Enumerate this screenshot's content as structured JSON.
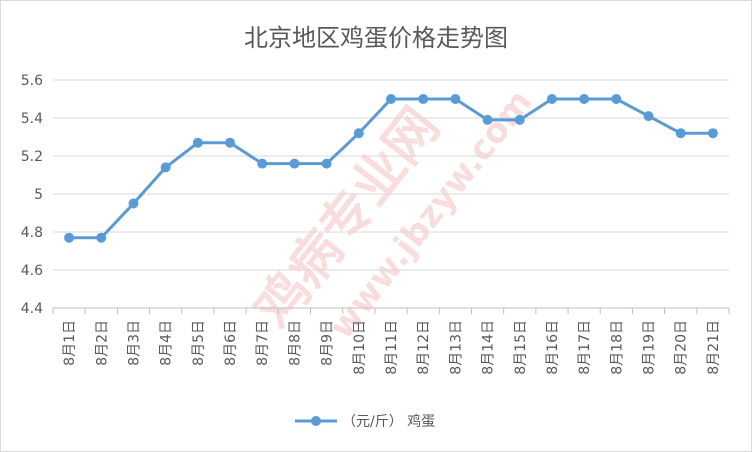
{
  "chart_data": {
    "type": "line",
    "title": "北京地区鸡蛋价格走势图",
    "categories": [
      "8月1日",
      "8月2日",
      "8月3日",
      "8月4日",
      "8月5日",
      "8月6日",
      "8月7日",
      "8月8日",
      "8月9日",
      "8月10日",
      "8月11日",
      "8月12日",
      "8月13日",
      "8月14日",
      "8月15日",
      "8月16日",
      "8月17日",
      "8月18日",
      "8月19日",
      "8月20日",
      "8月21日"
    ],
    "series": [
      {
        "name": "（元/斤） 鸡蛋",
        "values": [
          4.77,
          4.77,
          4.95,
          5.14,
          5.27,
          5.27,
          5.16,
          5.16,
          5.16,
          5.32,
          5.5,
          5.5,
          5.5,
          5.39,
          5.39,
          5.5,
          5.5,
          5.5,
          5.41,
          5.32,
          5.32
        ]
      }
    ],
    "ylim": [
      4.4,
      5.6
    ],
    "yticks": [
      "4.4",
      "4.6",
      "4.8",
      "5",
      "5.2",
      "5.4",
      "5.6"
    ],
    "xlabel": "",
    "ylabel": "",
    "grid": true,
    "legend_position": "bottom",
    "colors": {
      "series": "#5b9bd5",
      "grid": "#d9d9d9",
      "text": "#595959",
      "watermark": "#f2b8b8"
    }
  },
  "watermark": {
    "text": "鸡病专业网",
    "url": "www.jbzyw.com"
  }
}
